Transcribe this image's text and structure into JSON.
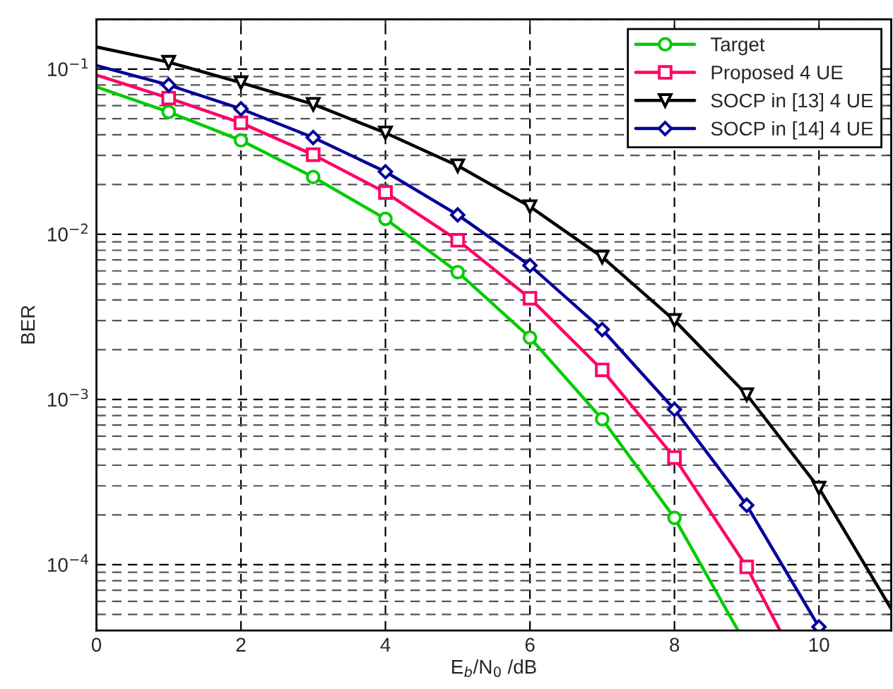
{
  "chart_data": {
    "type": "line",
    "xlabel": "E$_{b}$/N$_{0}$ /dB",
    "ylabel": "BER",
    "log": "y",
    "xlim": [
      0,
      11
    ],
    "ylim": [
      4e-05,
      0.2
    ],
    "xticks": [
      0,
      2,
      4,
      6,
      8,
      10
    ],
    "yticks": [
      {
        "value": 0.0001,
        "label": "10$^{−4}$"
      },
      {
        "value": 0.001,
        "label": "10$^{−3}$"
      },
      {
        "value": 0.01,
        "label": "10$^{−2}$"
      },
      {
        "value": 0.1,
        "label": "10$^{−1}$"
      }
    ],
    "grid": true,
    "legend": "top right",
    "series": [
      {
        "name": "Target",
        "color": "#00cc00",
        "marker": "circle",
        "x": [
          0,
          1,
          2,
          3,
          4,
          5,
          6,
          7,
          8,
          8.88
        ],
        "values": [
          0.078,
          0.055,
          0.037,
          0.0222,
          0.0124,
          0.0059,
          0.00237,
          0.00076,
          0.000192,
          4e-05
        ]
      },
      {
        "name": "Proposed 4 UE",
        "color": "#ff0066",
        "marker": "square",
        "x": [
          0,
          1,
          2,
          3,
          4,
          5,
          6,
          7,
          8,
          9,
          9.46
        ],
        "values": [
          0.092,
          0.0667,
          0.0472,
          0.0303,
          0.0179,
          0.0092,
          0.0041,
          0.00151,
          0.000445,
          9.7e-05,
          4e-05
        ]
      },
      {
        "name": "SOCP in [13] 4 UE",
        "color": "#000000",
        "marker": "triangle",
        "x": [
          0,
          1,
          2,
          3,
          4,
          5,
          6,
          7,
          8,
          9,
          10,
          11
        ],
        "values": [
          0.136,
          0.11,
          0.0827,
          0.0612,
          0.0411,
          0.026,
          0.0147,
          0.00728,
          0.00301,
          0.00107,
          0.000291,
          5.4e-05
        ]
      },
      {
        "name": "SOCP in [14] 4 UE",
        "color": "#000099",
        "marker": "diamond",
        "x": [
          0,
          1,
          2,
          3,
          4,
          5,
          6,
          7,
          8,
          9,
          10
        ],
        "values": [
          0.105,
          0.08,
          0.0574,
          0.0385,
          0.0239,
          0.0131,
          0.00647,
          0.00265,
          0.00087,
          0.000229,
          4.2e-05
        ]
      }
    ]
  }
}
